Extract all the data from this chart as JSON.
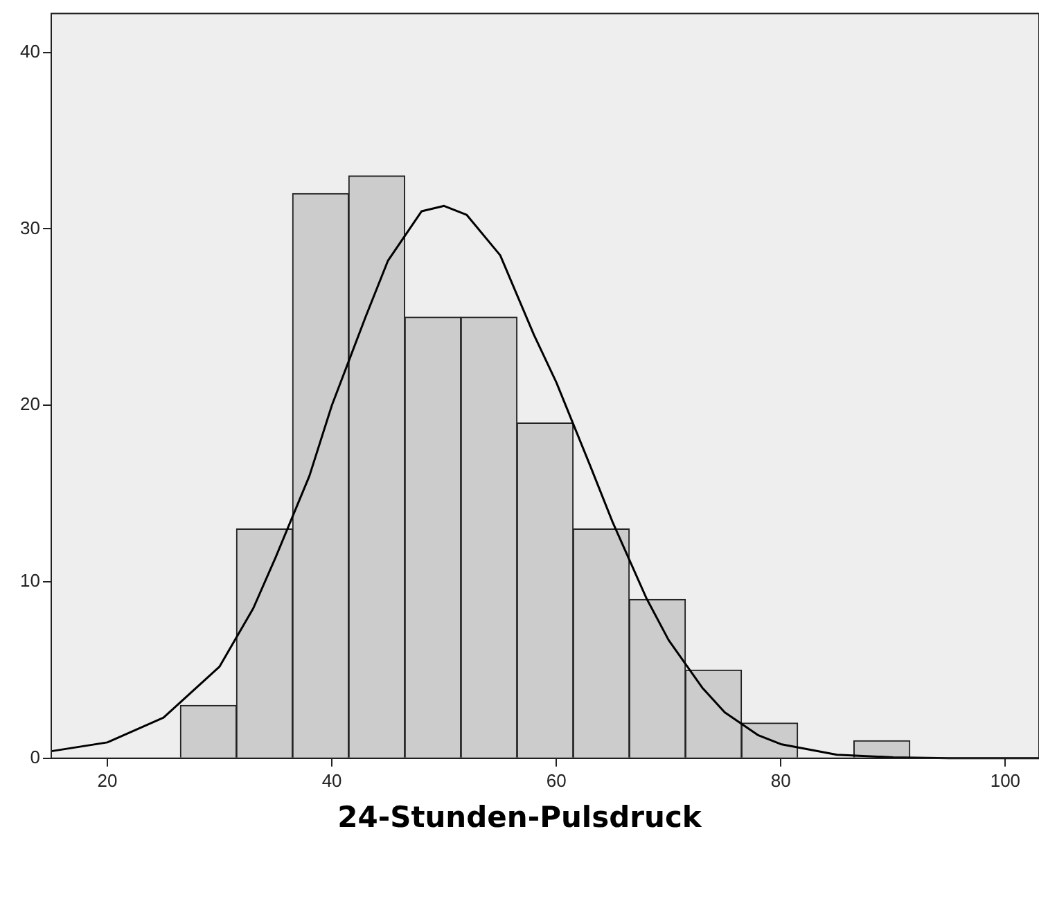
{
  "chart_data": {
    "type": "histogram",
    "xlabel": "24-Stunden-Pulsdruck",
    "bins": [
      26.5,
      31.5,
      36.5,
      41.5,
      46.5,
      51.5,
      56.5,
      61.5,
      66.5,
      71.5,
      76.5,
      81.5,
      86.5,
      91.5
    ],
    "values": [
      3,
      13,
      32,
      33,
      25,
      25,
      19,
      13,
      9,
      5,
      2,
      0,
      1
    ],
    "color": "#cccccc",
    "series": [
      {
        "type": "line",
        "color": "#000000",
        "marker": "none",
        "x": [
          15,
          20,
          25,
          30,
          33,
          35,
          38,
          40,
          43,
          45,
          48,
          50,
          52,
          55,
          58,
          60,
          63,
          65,
          68,
          70,
          73,
          75,
          78,
          80,
          85,
          90,
          95,
          103
        ],
        "values": [
          0.4,
          0.9,
          2.3,
          5.2,
          8.5,
          11.4,
          16,
          20,
          25,
          28.2,
          31,
          31.3,
          30.8,
          28.5,
          24,
          21.3,
          16.6,
          13.4,
          9.1,
          6.7,
          4,
          2.6,
          1.3,
          0.8,
          0.2,
          0.05,
          0,
          0
        ]
      }
    ],
    "xlim": [
      15,
      103
    ],
    "xticks": [
      20,
      40,
      60,
      80,
      100
    ],
    "ylim": [
      0,
      42.2
    ],
    "yticks": [
      0,
      10,
      20,
      30,
      40
    ],
    "grid": false,
    "legend": false
  }
}
